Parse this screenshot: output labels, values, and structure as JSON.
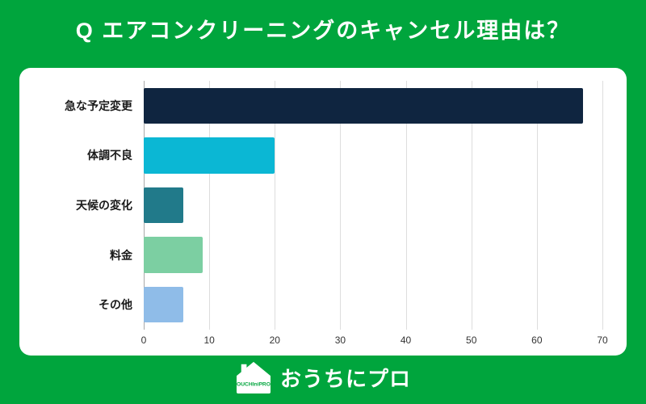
{
  "title": "Q エアコンクリーニングのキャンセル理由は？",
  "chart_data": {
    "type": "bar",
    "orientation": "horizontal",
    "title": "エアコンクリーニングのキャンセル理由",
    "categories": [
      "急な予定変更",
      "体調不良",
      "天候の変化",
      "料金",
      "その他"
    ],
    "values": [
      67,
      20,
      6,
      9,
      6
    ],
    "bar_colors": [
      "#0F2540",
      "#0BB7D4",
      "#217A8A",
      "#7CCFA2",
      "#8FBCE8"
    ],
    "xlim": [
      0,
      70
    ],
    "xticks": [
      0,
      10,
      20,
      30,
      40,
      50,
      60,
      70
    ],
    "grid": true,
    "legend": false
  },
  "footer": {
    "brand_text": "おうちにプロ",
    "logo_label": "OUCHIniPRO"
  },
  "colors": {
    "background": "#00A53D",
    "card": "#FFFFFF",
    "grid_line": "#DDDDDD",
    "zero_line": "#AAAAAA",
    "axis_text": "#333333",
    "category_text": "#1A1A1A"
  }
}
